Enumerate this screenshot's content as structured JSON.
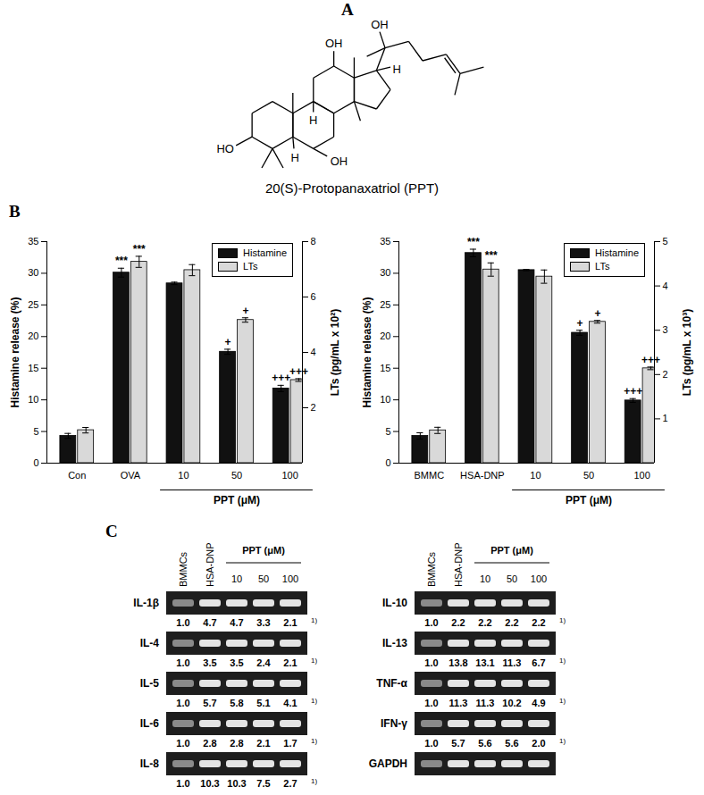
{
  "panel_labels": [
    "A",
    "B",
    "C"
  ],
  "structure": {
    "title": "20(S)-Protopanaxatriol (PPT)",
    "atom_labels": [
      "OH",
      "OH",
      "H",
      "H",
      "H",
      "HO",
      "OH"
    ]
  },
  "chart_data": [
    {
      "type": "bar",
      "categories": [
        "Con",
        "OVA",
        "10",
        "50",
        "100"
      ],
      "group": {
        "label": "PPT (μM)",
        "categories": [
          "10",
          "50",
          "100"
        ]
      },
      "ylabel": "Histamine release (%)",
      "y2label": "LTs (pg/mL x 10²)",
      "ylim": [
        0,
        35
      ],
      "yticks": [
        0,
        5,
        10,
        15,
        20,
        25,
        30,
        35
      ],
      "y2lim": [
        0,
        8
      ],
      "y2ticks": [
        2,
        4,
        6,
        8
      ],
      "legend": "top-right",
      "series": [
        {
          "name": "Histamine",
          "color": "#111111",
          "values": [
            4.3,
            30.1,
            28.4,
            17.6,
            11.8
          ],
          "errors": [
            0.4,
            0.7,
            0.2,
            0.4,
            0.5
          ],
          "significance": [
            null,
            "***",
            null,
            "+",
            "+++"
          ]
        },
        {
          "name": "LTs",
          "color": "#d9d9d9",
          "axis": "y2",
          "values": [
            1.19,
            7.27,
            6.97,
            5.17,
            3.0
          ],
          "errors": [
            0.1,
            0.2,
            0.2,
            0.08,
            0.05
          ],
          "significance": [
            null,
            "***",
            null,
            "+",
            "+++"
          ]
        }
      ]
    },
    {
      "type": "bar",
      "categories": [
        "BMMC",
        "HSA-DNP",
        "10",
        "50",
        "100"
      ],
      "group": {
        "label": "PPT (μM)",
        "categories": [
          "10",
          "50",
          "100"
        ]
      },
      "ylabel": "Histamine release (%)",
      "y2label": "LTs (pg/mL x 10³)",
      "ylim": [
        0,
        35
      ],
      "yticks": [
        0,
        5,
        10,
        15,
        20,
        25,
        30,
        35
      ],
      "y2lim": [
        0,
        5
      ],
      "y2ticks": [
        1,
        2,
        3,
        4,
        5
      ],
      "legend": "top-right",
      "series": [
        {
          "name": "Histamine",
          "color": "#111111",
          "values": [
            4.3,
            33.2,
            30.5,
            20.6,
            9.9
          ],
          "errors": [
            0.5,
            0.6,
            0.1,
            0.4,
            0.3
          ],
          "significance": [
            null,
            "***",
            null,
            "+",
            "+++"
          ]
        },
        {
          "name": "LTs",
          "color": "#d9d9d9",
          "axis": "y2",
          "values": [
            0.74,
            4.37,
            4.21,
            3.19,
            2.14
          ],
          "errors": [
            0.07,
            0.15,
            0.15,
            0.03,
            0.03
          ],
          "significance": [
            null,
            "***",
            null,
            "+",
            "+++"
          ]
        }
      ]
    }
  ],
  "gel": {
    "lanes": [
      "BMMCs",
      "HSA-DNP",
      "10",
      "50",
      "100"
    ],
    "group": {
      "label": "PPT (μM)",
      "lanes": [
        "10",
        "50",
        "100"
      ]
    },
    "footnote": "1)",
    "columns": [
      {
        "rows": [
          {
            "name": "IL-1β",
            "values": [
              "1.0",
              "4.7",
              "4.7",
              "3.3",
              "2.1"
            ]
          },
          {
            "name": "IL-4",
            "values": [
              "1.0",
              "3.5",
              "3.5",
              "2.4",
              "2.1"
            ]
          },
          {
            "name": "IL-5",
            "values": [
              "1.0",
              "5.7",
              "5.8",
              "5.1",
              "4.1"
            ]
          },
          {
            "name": "IL-6",
            "values": [
              "1.0",
              "2.8",
              "2.8",
              "2.1",
              "1.7"
            ]
          },
          {
            "name": "IL-8",
            "values": [
              "1.0",
              "10.3",
              "10.3",
              "7.5",
              "2.7"
            ]
          }
        ]
      },
      {
        "rows": [
          {
            "name": "IL-10",
            "values": [
              "1.0",
              "2.2",
              "2.2",
              "2.2",
              "2.2"
            ]
          },
          {
            "name": "IL-13",
            "values": [
              "1.0",
              "13.8",
              "13.1",
              "11.3",
              "6.7"
            ]
          },
          {
            "name": "TNF-α",
            "values": [
              "1.0",
              "11.3",
              "11.3",
              "10.2",
              "4.9"
            ]
          },
          {
            "name": "IFN-γ",
            "values": [
              "1.0",
              "5.7",
              "5.6",
              "5.6",
              "2.0"
            ]
          },
          {
            "name": "GAPDH"
          }
        ]
      }
    ]
  }
}
